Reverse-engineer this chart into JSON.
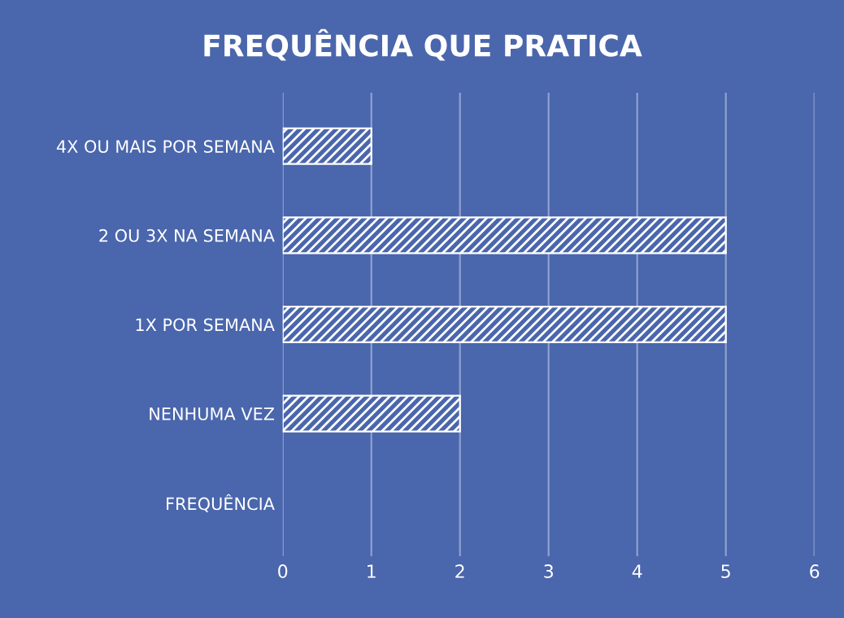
{
  "chart_data": {
    "type": "bar",
    "orientation": "horizontal",
    "title": "FREQUÊNCIA QUE PRATICA",
    "categories": [
      "4X OU MAIS POR SEMANA",
      "2 OU 3X NA SEMANA",
      "1X POR SEMANA",
      "NENHUMA VEZ",
      "FREQUÊNCIA"
    ],
    "values": [
      1,
      5,
      5,
      2,
      null
    ],
    "color": "#ffffff",
    "xlim": [
      0,
      6
    ],
    "xticks": [
      0,
      1,
      2,
      3,
      4,
      5,
      6
    ],
    "grid": "x",
    "legend": false
  }
}
